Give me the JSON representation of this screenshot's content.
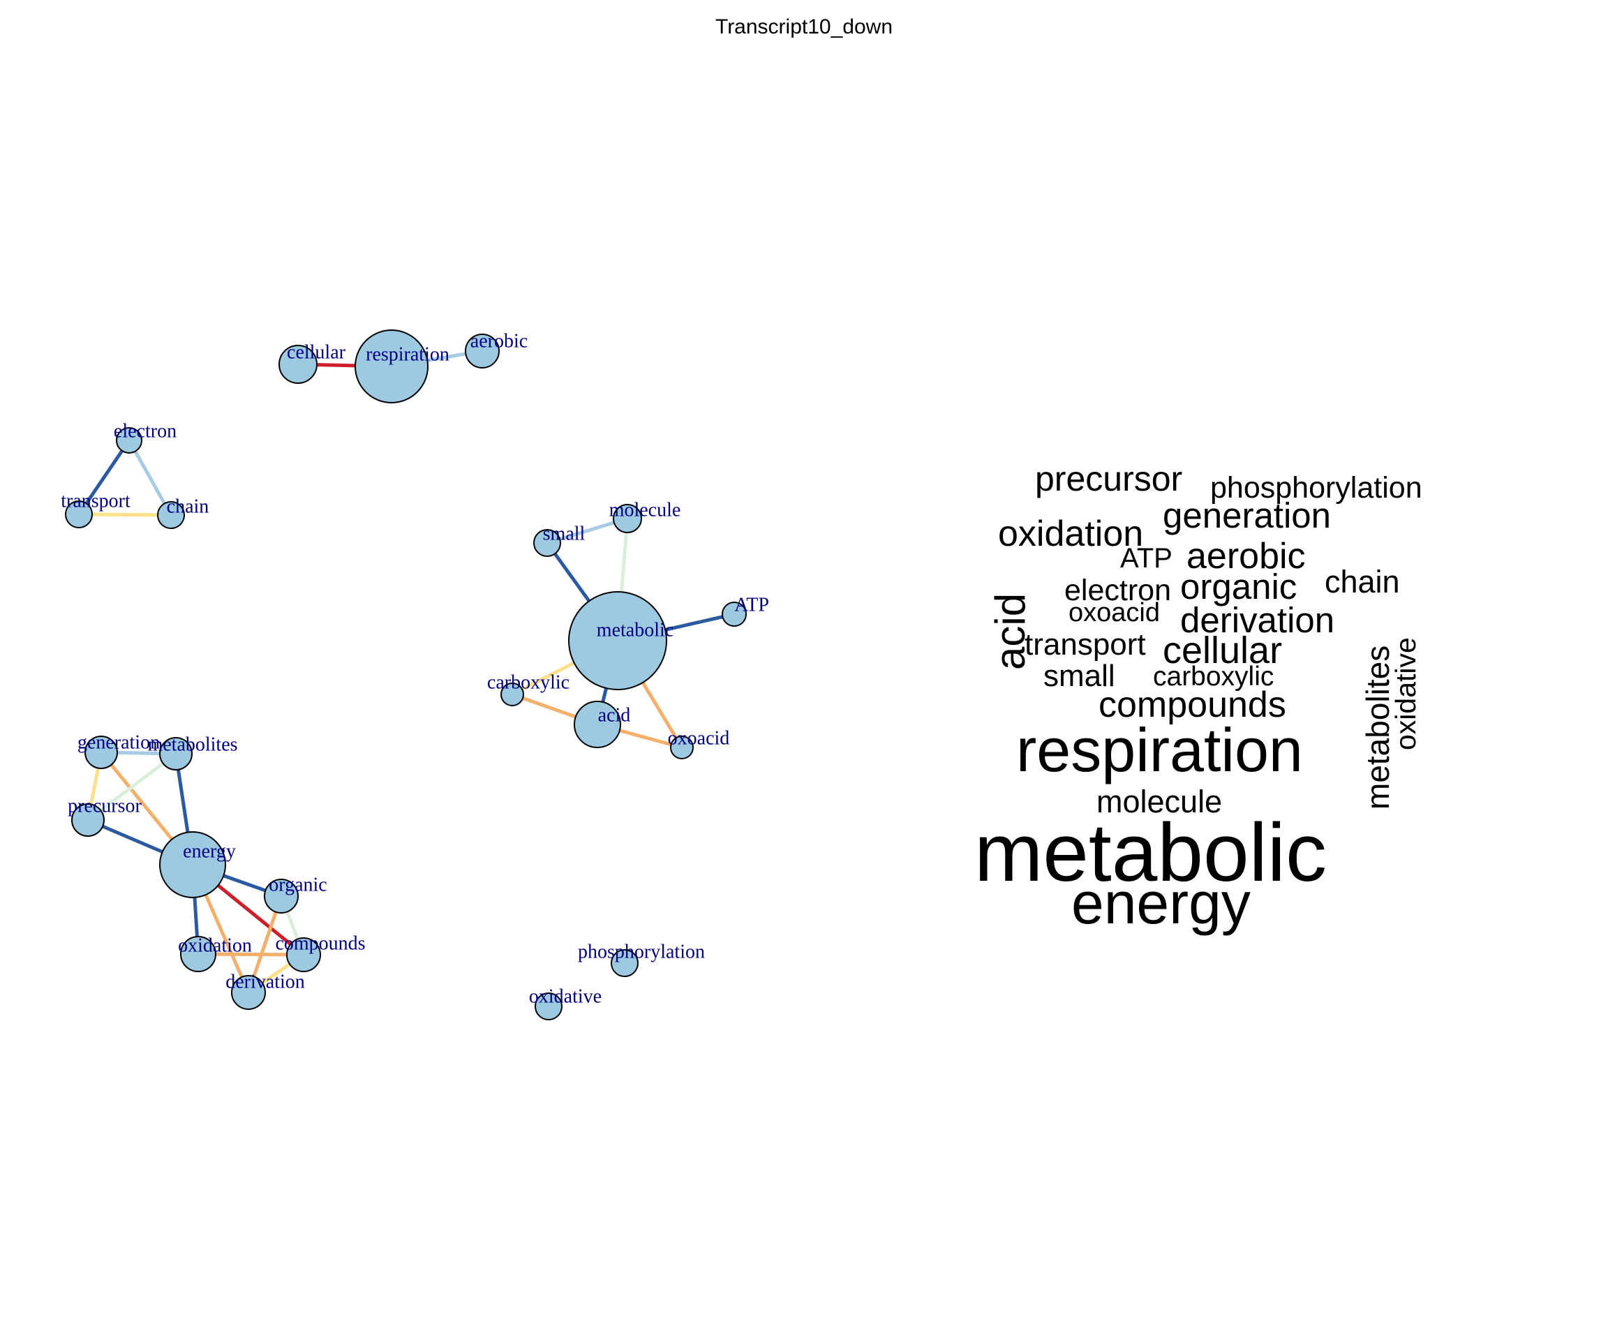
{
  "title": "Transcript10_down",
  "network": {
    "node_fill": "#9ecae1",
    "node_stroke": "#000000",
    "label_color": "#000080",
    "edge_colors": {
      "dark_blue": "#2c5aa0",
      "light_blue": "#a6cbe3",
      "pale_green": "#d9efd9",
      "yellow": "#fee08b",
      "orange": "#f4b06a",
      "red": "#cc1f2a"
    },
    "nodes": [
      {
        "id": "cellular",
        "label": "cellular"
      },
      {
        "id": "respiration",
        "label": "respiration"
      },
      {
        "id": "aerobic",
        "label": "aerobic"
      },
      {
        "id": "electron",
        "label": "electron"
      },
      {
        "id": "transport",
        "label": "transport"
      },
      {
        "id": "chain",
        "label": "chain"
      },
      {
        "id": "small",
        "label": "small"
      },
      {
        "id": "molecule",
        "label": "molecule"
      },
      {
        "id": "metabolic",
        "label": "metabolic"
      },
      {
        "id": "ATP",
        "label": "ATP"
      },
      {
        "id": "carboxylic",
        "label": "carboxylic"
      },
      {
        "id": "acid",
        "label": "acid"
      },
      {
        "id": "oxoacid",
        "label": "oxoacid"
      },
      {
        "id": "generation",
        "label": "generation"
      },
      {
        "id": "metabolites",
        "label": "metabolites"
      },
      {
        "id": "precursor",
        "label": "precursor"
      },
      {
        "id": "energy",
        "label": "energy"
      },
      {
        "id": "organic",
        "label": "organic"
      },
      {
        "id": "oxidation",
        "label": "oxidation"
      },
      {
        "id": "compounds",
        "label": "compounds"
      },
      {
        "id": "derivation",
        "label": "derivation"
      },
      {
        "id": "phosphorylation",
        "label": "phosphorylation"
      },
      {
        "id": "oxidative",
        "label": "oxidative"
      }
    ],
    "edges": [
      {
        "source": "cellular",
        "target": "respiration",
        "color": "red"
      },
      {
        "source": "respiration",
        "target": "aerobic",
        "color": "light_blue"
      },
      {
        "source": "electron",
        "target": "transport",
        "color": "dark_blue"
      },
      {
        "source": "electron",
        "target": "chain",
        "color": "light_blue"
      },
      {
        "source": "transport",
        "target": "chain",
        "color": "yellow"
      },
      {
        "source": "small",
        "target": "molecule",
        "color": "light_blue"
      },
      {
        "source": "small",
        "target": "metabolic",
        "color": "dark_blue"
      },
      {
        "source": "molecule",
        "target": "metabolic",
        "color": "pale_green"
      },
      {
        "source": "metabolic",
        "target": "ATP",
        "color": "dark_blue"
      },
      {
        "source": "metabolic",
        "target": "acid",
        "color": "dark_blue"
      },
      {
        "source": "metabolic",
        "target": "carboxylic",
        "color": "yellow"
      },
      {
        "source": "metabolic",
        "target": "oxoacid",
        "color": "orange"
      },
      {
        "source": "carboxylic",
        "target": "acid",
        "color": "orange"
      },
      {
        "source": "acid",
        "target": "oxoacid",
        "color": "orange"
      },
      {
        "source": "generation",
        "target": "metabolites",
        "color": "light_blue"
      },
      {
        "source": "generation",
        "target": "precursor",
        "color": "yellow"
      },
      {
        "source": "generation",
        "target": "energy",
        "color": "orange"
      },
      {
        "source": "metabolites",
        "target": "precursor",
        "color": "pale_green"
      },
      {
        "source": "metabolites",
        "target": "energy",
        "color": "dark_blue"
      },
      {
        "source": "precursor",
        "target": "energy",
        "color": "dark_blue"
      },
      {
        "source": "energy",
        "target": "organic",
        "color": "dark_blue"
      },
      {
        "source": "energy",
        "target": "oxidation",
        "color": "dark_blue"
      },
      {
        "source": "energy",
        "target": "compounds",
        "color": "red"
      },
      {
        "source": "energy",
        "target": "derivation",
        "color": "orange"
      },
      {
        "source": "organic",
        "target": "compounds",
        "color": "pale_green"
      },
      {
        "source": "organic",
        "target": "derivation",
        "color": "orange"
      },
      {
        "source": "oxidation",
        "target": "compounds",
        "color": "orange"
      },
      {
        "source": "derivation",
        "target": "compounds",
        "color": "yellow"
      }
    ]
  },
  "wordcloud": {
    "words": [
      {
        "text": "precursor"
      },
      {
        "text": "phosphorylation"
      },
      {
        "text": "generation"
      },
      {
        "text": "oxidation"
      },
      {
        "text": "ATP"
      },
      {
        "text": "aerobic"
      },
      {
        "text": "electron"
      },
      {
        "text": "organic"
      },
      {
        "text": "chain"
      },
      {
        "text": "oxoacid"
      },
      {
        "text": "derivation"
      },
      {
        "text": "acid"
      },
      {
        "text": "transport"
      },
      {
        "text": "cellular"
      },
      {
        "text": "small"
      },
      {
        "text": "carboxylic"
      },
      {
        "text": "metabolites"
      },
      {
        "text": "oxidative"
      },
      {
        "text": "compounds"
      },
      {
        "text": "respiration"
      },
      {
        "text": "molecule"
      },
      {
        "text": "metabolic"
      },
      {
        "text": "energy"
      }
    ]
  }
}
